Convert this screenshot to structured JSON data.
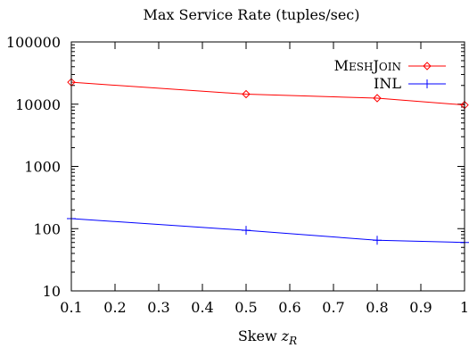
{
  "chart_data": {
    "type": "line",
    "title": "Max Service Rate (tuples/sec)",
    "xlabel": "Skew",
    "xlabel_symbol": "z",
    "xlabel_subscript": "R",
    "ylabel": "",
    "xlim": [
      0.1,
      1.0
    ],
    "ylim": [
      10,
      100000
    ],
    "yscale": "log",
    "grid": false,
    "legend_position": "top-right",
    "x_ticks": [
      {
        "value": 0.1,
        "label": "0.1"
      },
      {
        "value": 0.2,
        "label": "0.2"
      },
      {
        "value": 0.3,
        "label": "0.3"
      },
      {
        "value": 0.4,
        "label": "0.4"
      },
      {
        "value": 0.5,
        "label": "0.5"
      },
      {
        "value": 0.6,
        "label": "0.6"
      },
      {
        "value": 0.7,
        "label": "0.7"
      },
      {
        "value": 0.8,
        "label": "0.8"
      },
      {
        "value": 0.9,
        "label": "0.9"
      },
      {
        "value": 1.0,
        "label": "1"
      }
    ],
    "y_ticks": [
      {
        "value": 10,
        "label": "10"
      },
      {
        "value": 100,
        "label": "100"
      },
      {
        "value": 1000,
        "label": "1000"
      },
      {
        "value": 10000,
        "label": "10000"
      },
      {
        "value": 100000,
        "label": "100000"
      }
    ],
    "series": [
      {
        "name": "MeshJoin",
        "name_first": "M",
        "name_rest_first": "ESH",
        "name_second": "J",
        "name_rest_second": "OIN",
        "color": "#ff0000",
        "marker": "diamond",
        "x": [
          0.1,
          0.5,
          0.8,
          1.0
        ],
        "y": [
          22500,
          14500,
          12500,
          9700
        ]
      },
      {
        "name": "INL",
        "color": "#0000ff",
        "marker": "plus",
        "x": [
          0.1,
          0.5,
          0.8,
          1.0
        ],
        "y": [
          145,
          94,
          65,
          60
        ]
      }
    ]
  }
}
